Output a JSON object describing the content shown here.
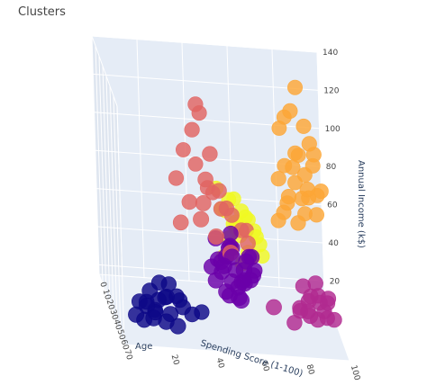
{
  "chart_data": {
    "type": "scatter",
    "title": "Clusters",
    "axes": {
      "x": {
        "label": "Age",
        "ticks": [
          "70",
          "60",
          "50",
          "40",
          "30",
          "20",
          "10",
          "0"
        ]
      },
      "y": {
        "label": "Spending Score (1-100)",
        "ticks": [
          "20",
          "40",
          "60",
          "80",
          "100"
        ]
      },
      "z": {
        "label": "Annual Income (k$)",
        "ticks": [
          "20",
          "40",
          "60",
          "80",
          "100",
          "120",
          "140"
        ]
      }
    },
    "colors": {
      "cluster_0": "#0d0887",
      "cluster_1": "#6a00a8",
      "cluster_2": "#b12a90",
      "cluster_3": "#e16462",
      "cluster_4": "#fca636",
      "cluster_5": "#f0f921"
    },
    "series": [
      {
        "name": "",
        "color_key": "cluster_3",
        "points": [
          [
            35,
            40,
            126
          ],
          [
            32,
            42,
            120
          ],
          [
            36,
            38,
            113
          ],
          [
            40,
            45,
            103
          ],
          [
            28,
            35,
            98
          ],
          [
            45,
            42,
            92
          ],
          [
            38,
            30,
            88
          ],
          [
            50,
            40,
            82
          ],
          [
            30,
            45,
            80
          ],
          [
            42,
            35,
            78
          ],
          [
            55,
            38,
            76
          ],
          [
            25,
            48,
            75
          ],
          [
            35,
            50,
            72
          ],
          [
            48,
            30,
            70
          ],
          [
            33,
            55,
            68
          ],
          [
            52,
            45,
            66
          ],
          [
            40,
            58,
            64
          ],
          [
            60,
            50,
            62
          ],
          [
            45,
            60,
            60
          ],
          [
            28,
            62,
            58
          ],
          [
            38,
            52,
            74
          ],
          [
            44,
            48,
            86
          ],
          [
            30,
            40,
            92
          ]
        ]
      },
      {
        "name": "",
        "color_key": "cluster_4",
        "points": [
          [
            32,
            85,
            137
          ],
          [
            35,
            82,
            126
          ],
          [
            30,
            80,
            120
          ],
          [
            34,
            88,
            118
          ],
          [
            28,
            78,
            113
          ],
          [
            36,
            90,
            110
          ],
          [
            33,
            84,
            103
          ],
          [
            29,
            86,
            100
          ],
          [
            38,
            82,
            98
          ],
          [
            31,
            92,
            96
          ],
          [
            27,
            80,
            93
          ],
          [
            35,
            76,
            90
          ],
          [
            40,
            88,
            88
          ],
          [
            30,
            84,
            86
          ],
          [
            33,
            95,
            84
          ],
          [
            36,
            86,
            81
          ],
          [
            29,
            90,
            78
          ],
          [
            32,
            80,
            76
          ],
          [
            38,
            92,
            74
          ],
          [
            34,
            78,
            72
          ],
          [
            30,
            88,
            70
          ],
          [
            36,
            84,
            68
          ],
          [
            31,
            76,
            66
          ],
          [
            28,
            94,
            79
          ],
          [
            37,
            80,
            82
          ],
          [
            33,
            88,
            92
          ],
          [
            35,
            92,
            104
          ]
        ]
      },
      {
        "name": "",
        "color_key": "cluster_5",
        "points": [
          [
            22,
            50,
            76
          ],
          [
            25,
            55,
            72
          ],
          [
            20,
            58,
            70
          ],
          [
            28,
            60,
            68
          ],
          [
            23,
            52,
            66
          ],
          [
            26,
            62,
            64
          ],
          [
            30,
            56,
            62
          ],
          [
            21,
            64,
            60
          ],
          [
            27,
            58,
            58
          ],
          [
            24,
            66,
            56
          ],
          [
            29,
            54,
            54
          ],
          [
            22,
            60,
            52
          ],
          [
            26,
            68,
            50
          ],
          [
            31,
            62,
            48
          ],
          [
            23,
            56,
            46
          ],
          [
            28,
            64,
            44
          ],
          [
            25,
            52,
            42
          ],
          [
            20,
            70,
            41
          ],
          [
            27,
            60,
            40
          ],
          [
            24,
            58,
            60
          ],
          [
            30,
            66,
            56
          ],
          [
            21,
            54,
            64
          ]
        ]
      },
      {
        "name": "",
        "color_key": "cluster_1",
        "points": [
          [
            50,
            45,
            64
          ],
          [
            55,
            50,
            62
          ],
          [
            60,
            48,
            60
          ],
          [
            45,
            52,
            58
          ],
          [
            65,
            55,
            56
          ],
          [
            52,
            58,
            54
          ],
          [
            48,
            46,
            52
          ],
          [
            58,
            60,
            50
          ],
          [
            62,
            50,
            48
          ],
          [
            46,
            54,
            46
          ],
          [
            54,
            44,
            44
          ],
          [
            68,
            52,
            43
          ],
          [
            50,
            56,
            42
          ],
          [
            57,
            48,
            40
          ],
          [
            44,
            58,
            40
          ],
          [
            61,
            54,
            38
          ],
          [
            53,
            50,
            36
          ],
          [
            47,
            60,
            54
          ],
          [
            66,
            46,
            58
          ],
          [
            59,
            56,
            46
          ],
          [
            49,
            62,
            48
          ],
          [
            56,
            42,
            52
          ],
          [
            63,
            58,
            50
          ],
          [
            51,
            52,
            60
          ],
          [
            58,
            46,
            56
          ],
          [
            45,
            48,
            44
          ],
          [
            64,
            50,
            62
          ],
          [
            52,
            54,
            40
          ],
          [
            55,
            60,
            58
          ],
          [
            48,
            52,
            66
          ]
        ]
      },
      {
        "name": "",
        "color_key": "cluster_2",
        "points": [
          [
            42,
            90,
            40
          ],
          [
            38,
            85,
            36
          ],
          [
            45,
            95,
            34
          ],
          [
            40,
            88,
            32
          ],
          [
            35,
            92,
            30
          ],
          [
            48,
            82,
            28
          ],
          [
            36,
            96,
            27
          ],
          [
            44,
            86,
            26
          ],
          [
            39,
            94,
            24
          ],
          [
            46,
            90,
            23
          ],
          [
            33,
            84,
            22
          ],
          [
            41,
            98,
            21
          ],
          [
            37,
            88,
            20
          ],
          [
            43,
            80,
            19
          ],
          [
            50,
            70,
            30
          ],
          [
            34,
            96,
            18
          ],
          [
            40,
            92,
            29
          ],
          [
            47,
            86,
            33
          ]
        ]
      },
      {
        "name": "",
        "color_key": "cluster_0",
        "points": [
          [
            45,
            20,
            36
          ],
          [
            50,
            15,
            34
          ],
          [
            40,
            25,
            33
          ],
          [
            55,
            18,
            32
          ],
          [
            60,
            12,
            31
          ],
          [
            48,
            22,
            30
          ],
          [
            52,
            10,
            29
          ],
          [
            42,
            28,
            28
          ],
          [
            58,
            16,
            27
          ],
          [
            46,
            14,
            26
          ],
          [
            63,
            20,
            25
          ],
          [
            38,
            30,
            24
          ],
          [
            54,
            8,
            23
          ],
          [
            49,
            24,
            22
          ],
          [
            44,
            18,
            21
          ],
          [
            57,
            26,
            20
          ],
          [
            51,
            12,
            19
          ],
          [
            40,
            35,
            18
          ],
          [
            35,
            40,
            17
          ],
          [
            66,
            14,
            28
          ],
          [
            47,
            30,
            25
          ],
          [
            53,
            22,
            33
          ]
        ]
      }
    ]
  }
}
